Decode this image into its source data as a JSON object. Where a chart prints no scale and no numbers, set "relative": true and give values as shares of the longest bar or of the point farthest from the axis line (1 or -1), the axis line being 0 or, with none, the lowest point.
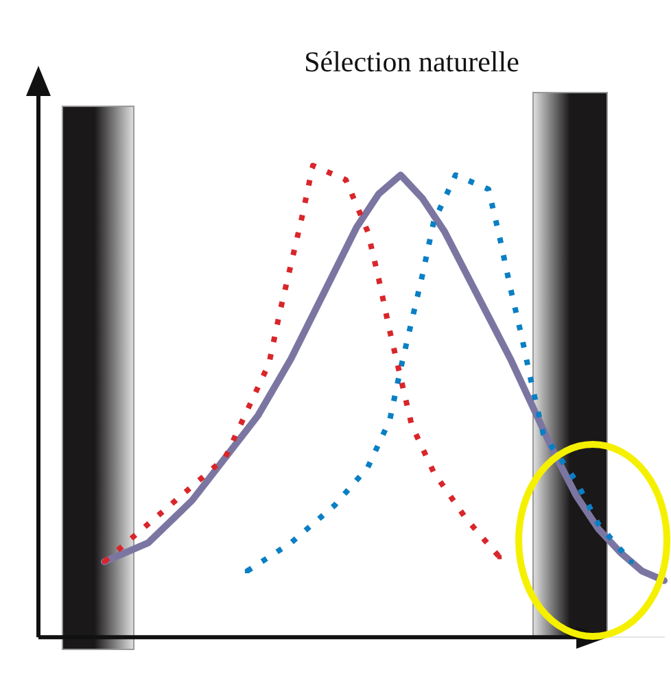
{
  "chart_data": {
    "type": "line",
    "title": "Sélection naturelle",
    "relative": true,
    "legend": false,
    "categories": [
      null,
      null,
      null,
      null,
      null,
      null,
      null,
      null,
      null,
      null,
      null,
      null,
      null,
      null,
      null,
      null,
      null,
      null,
      null,
      null,
      null,
      null,
      null,
      null,
      null,
      null,
      null,
      null,
      null,
      null,
      null,
      null,
      null,
      null,
      null,
      null,
      null,
      null,
      null,
      null,
      null,
      null,
      null,
      null,
      null,
      null,
      null,
      null,
      null,
      null,
      null,
      null,
      null,
      null,
      null,
      null,
      null,
      null
    ],
    "series": [
      {
        "color": "#7b76a1",
        "line_style": "solid",
        "values": [
          null,
          null,
          null,
          null,
          null,
          null,
          0.16,
          null,
          null,
          null,
          0.2,
          null,
          null,
          null,
          0.29,
          null,
          null,
          0.38,
          null,
          null,
          0.47,
          null,
          null,
          0.59,
          null,
          null,
          0.73,
          null,
          null,
          0.87,
          null,
          0.94,
          null,
          0.98,
          null,
          0.93,
          null,
          0.86,
          null,
          0.77,
          null,
          0.68,
          null,
          0.59,
          null,
          0.49,
          null,
          0.39,
          null,
          0.3,
          null,
          0.23,
          null,
          0.18,
          null,
          0.14,
          null,
          0.12
        ]
      },
      {
        "color": "#d8262b",
        "line_style": "dotted",
        "values": [
          null,
          null,
          null,
          null,
          null,
          null,
          0.16,
          null,
          null,
          null,
          null,
          null,
          null,
          null,
          null,
          null,
          null,
          0.38,
          null,
          0.48,
          null,
          0.58,
          0.69,
          0.79,
          0.89,
          1,
          null,
          null,
          0.97,
          null,
          0.86,
          0.76,
          0.65,
          0.55,
          0.45,
          null,
          0.35,
          null,
          null,
          0.25,
          null,
          null,
          0.17,
          null,
          null,
          null,
          null,
          null,
          null,
          null,
          null,
          null,
          null,
          null,
          null,
          null,
          null,
          null
        ]
      },
      {
        "color": "#0a7fc4",
        "line_style": "dotted",
        "values": [
          null,
          null,
          null,
          null,
          null,
          null,
          null,
          null,
          null,
          null,
          null,
          null,
          null,
          null,
          null,
          null,
          null,
          null,
          null,
          0.14,
          null,
          null,
          null,
          0.2,
          null,
          null,
          null,
          0.28,
          null,
          null,
          0.36,
          null,
          0.46,
          0.57,
          0.67,
          0.77,
          0.88,
          null,
          0.98,
          null,
          null,
          0.95,
          0.85,
          0.74,
          0.64,
          0.53,
          0.43,
          null,
          null,
          0.33,
          null,
          0.24,
          null,
          null,
          0.16,
          null,
          null,
          null
        ]
      }
    ]
  }
}
